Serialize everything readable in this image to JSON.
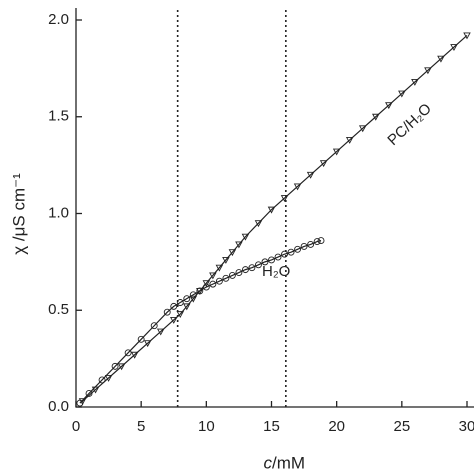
{
  "chart_data": {
    "type": "line",
    "y_label": "χ /μS cm⁻¹",
    "x_label": {
      "symbol": "c",
      "unit": "/mM"
    },
    "xlim": [
      0,
      30
    ],
    "ylim": [
      0,
      2.0
    ],
    "xticks": [
      0,
      5,
      10,
      15,
      20,
      25,
      30
    ],
    "yticks": [
      {
        "value": 0,
        "label": "0.0"
      },
      0.5,
      {
        "value": 1,
        "label": "1.0"
      },
      1.5,
      {
        "value": 2,
        "label": "2.0"
      }
    ],
    "vlines": [
      7.8,
      16.1
    ],
    "series": [
      {
        "name": "PC/H₂O",
        "color": "#222222",
        "marker": "triangle",
        "x": [
          0.5,
          1.5,
          2.5,
          3.5,
          4.5,
          5.5,
          6.5,
          7.5,
          8,
          8.5,
          9,
          9.5,
          10,
          10.5,
          11,
          11.5,
          12,
          12.5,
          13,
          14,
          15,
          16,
          17,
          18,
          19,
          20,
          21,
          22,
          23,
          24,
          25,
          26,
          27,
          28,
          29,
          30
        ],
        "values": [
          0.03,
          0.09,
          0.15,
          0.21,
          0.27,
          0.33,
          0.39,
          0.45,
          0.48,
          0.52,
          0.56,
          0.6,
          0.64,
          0.68,
          0.72,
          0.76,
          0.8,
          0.84,
          0.88,
          0.95,
          1.02,
          1.08,
          1.14,
          1.2,
          1.26,
          1.32,
          1.38,
          1.44,
          1.5,
          1.56,
          1.62,
          1.68,
          1.74,
          1.8,
          1.86,
          1.92
        ]
      },
      {
        "name": "H₂O",
        "color": "#222222",
        "marker": "circle",
        "x": [
          0.3,
          1,
          2,
          3,
          4,
          5,
          6,
          7,
          7.5,
          8,
          8.5,
          9,
          9.5,
          10,
          10.5,
          11,
          11.5,
          12,
          12.5,
          13,
          13.5,
          14,
          14.5,
          15,
          15.5,
          16,
          16.5,
          17,
          17.5,
          18,
          18.5,
          18.8
        ],
        "values": [
          0.02,
          0.07,
          0.14,
          0.21,
          0.28,
          0.35,
          0.42,
          0.49,
          0.52,
          0.54,
          0.56,
          0.58,
          0.6,
          0.62,
          0.635,
          0.65,
          0.665,
          0.68,
          0.695,
          0.71,
          0.72,
          0.735,
          0.75,
          0.76,
          0.775,
          0.79,
          0.8,
          0.815,
          0.83,
          0.84,
          0.855,
          0.86
        ]
      }
    ]
  }
}
